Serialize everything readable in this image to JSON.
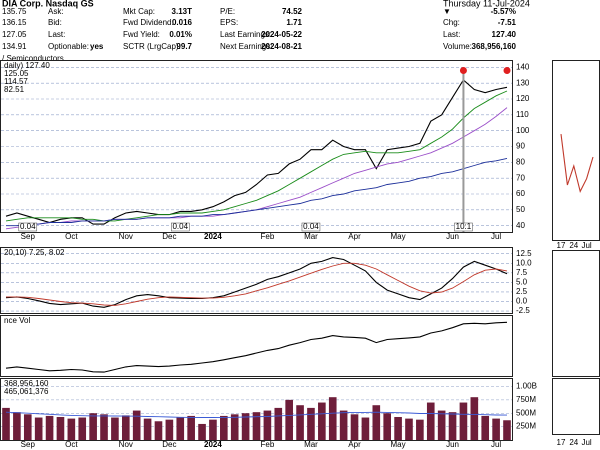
{
  "header": {
    "company": "DIA Corp. Nasdaq GS",
    "date": "Thursday 11-Jul-2024",
    "industry": "/ Semiconductors",
    "quote": [
      "135.75",
      "136.15",
      "127.05",
      "134.91"
    ],
    "fields": [
      {
        "label": "Ask:"
      },
      {
        "label": "Bid:"
      },
      {
        "label": "Last:"
      },
      {
        "label": "Optionable:",
        "value": "yes"
      },
      {
        "label": "Mkt Cap:",
        "value": "3.13T"
      },
      {
        "label": "Fwd Dividend:",
        "value": "0.016"
      },
      {
        "label": "Fwd Yield:",
        "value": "0.01%"
      },
      {
        "label": "SCTR (LrgCap):",
        "value": "99.7"
      },
      {
        "label": "P/E:",
        "value": "74.52"
      },
      {
        "label": "EPS:",
        "value": "1.71"
      },
      {
        "label": "Last Earnings:",
        "value": "2024-05-22"
      },
      {
        "label": "Next Earnings:",
        "value": "2024-08-21"
      },
      {
        "label": "▼",
        "value": "-5.57%",
        "color": "#d00000"
      },
      {
        "label": "Chg:",
        "value": "-7.51"
      },
      {
        "label": "Last:",
        "value": "127.40"
      },
      {
        "label": "Volume:",
        "value": "368,956,160"
      }
    ]
  },
  "chart_data": [
    {
      "type": "line",
      "grid": true,
      "categories": [
        null,
        null,
        "Sep",
        null,
        null,
        null,
        "Oct",
        null,
        null,
        null,
        null,
        "Nov",
        null,
        null,
        null,
        "Dec",
        null,
        null,
        null,
        "2024",
        null,
        null,
        null,
        null,
        "Feb",
        null,
        null,
        null,
        "Mar",
        null,
        null,
        null,
        "Apr",
        null,
        null,
        null,
        "May",
        null,
        null,
        null,
        null,
        "Jun",
        null,
        null,
        null,
        "Jul",
        null
      ],
      "series": [
        {
          "name": "daily) 127.40",
          "color": "#000000",
          "values": [
            46,
            48,
            46,
            44,
            42,
            44,
            45,
            45,
            41,
            41,
            45,
            48,
            49,
            48,
            47,
            47,
            49,
            49,
            50,
            52,
            55,
            59,
            61,
            66,
            72,
            73,
            79,
            82,
            88,
            88,
            94,
            90,
            88,
            88,
            76,
            88,
            89,
            90,
            92,
            106,
            110,
            121,
            132,
            126,
            124,
            126,
            127.4
          ]
        },
        {
          "name": "125.05",
          "color": "#1a8c1a",
          "values": [
            43,
            44,
            45,
            45,
            45,
            45,
            45,
            44,
            44,
            43,
            43,
            44,
            45,
            46,
            47,
            47,
            48,
            48,
            48,
            49,
            50,
            52,
            54,
            56,
            59,
            62,
            66,
            70,
            74,
            78,
            82,
            85,
            86,
            87,
            86,
            86,
            86,
            87,
            88,
            92,
            96,
            101,
            108,
            114,
            118,
            122,
            125.05
          ]
        },
        {
          "name": "114.57",
          "color": "#9b4fc9",
          "values": [
            38,
            39,
            40,
            41,
            42,
            42,
            43,
            43,
            43,
            43,
            44,
            44,
            44,
            45,
            45,
            45,
            45,
            46,
            46,
            46,
            47,
            48,
            49,
            50,
            52,
            54,
            56,
            58,
            61,
            64,
            67,
            70,
            73,
            75,
            77,
            79,
            80,
            82,
            84,
            86,
            89,
            92,
            96,
            100,
            104,
            109,
            114.57
          ]
        },
        {
          "name": "82.51",
          "color": "#1c2f9a",
          "values": [
            40,
            40,
            41,
            41,
            42,
            42,
            42,
            43,
            43,
            43,
            44,
            44,
            44,
            45,
            45,
            45,
            46,
            46,
            46,
            47,
            47,
            48,
            49,
            50,
            51,
            52,
            53,
            54,
            56,
            57,
            59,
            60,
            62,
            63,
            64,
            66,
            67,
            68,
            70,
            71,
            73,
            74,
            76,
            78,
            80,
            81,
            82.51
          ]
        }
      ],
      "ylim": [
        36,
        144
      ],
      "yticks": [
        140,
        130,
        120,
        110,
        100,
        90,
        80,
        70,
        60,
        50,
        40
      ],
      "annotations": [
        "0.04",
        "0.04",
        "0.04",
        "10:1"
      ]
    },
    {
      "type": "line",
      "grid": true,
      "title": "20,10) 7.25, 8.02",
      "series": [
        {
          "color": "#000000",
          "values": [
            1.0,
            1.2,
            0.8,
            0.2,
            -0.5,
            -0.8,
            -0.6,
            -0.4,
            -1.2,
            -1.5,
            -0.8,
            0.5,
            1.5,
            1.8,
            1.5,
            1.0,
            0.9,
            0.8,
            0.8,
            1.0,
            1.5,
            2.5,
            3.5,
            4.5,
            5.8,
            6.5,
            7.5,
            8.5,
            10.0,
            10.5,
            11.5,
            11.0,
            9.5,
            8.0,
            5.0,
            3.0,
            2.0,
            1.0,
            0.5,
            2.0,
            3.5,
            6.0,
            9.0,
            10.5,
            9.5,
            8.5,
            7.25
          ]
        },
        {
          "color": "#c0392b",
          "values": [
            1.2,
            1.2,
            1.1,
            0.8,
            0.4,
            0.0,
            -0.3,
            -0.4,
            -0.6,
            -0.9,
            -1.0,
            -0.6,
            0.0,
            0.6,
            1.0,
            1.2,
            1.1,
            1.0,
            0.9,
            0.9,
            1.1,
            1.5,
            2.0,
            2.8,
            3.6,
            4.5,
            5.4,
            6.4,
            7.4,
            8.4,
            9.3,
            10.0,
            10.0,
            9.5,
            8.5,
            7.0,
            5.5,
            4.0,
            2.8,
            2.2,
            2.5,
            3.5,
            5.2,
            7.0,
            8.2,
            8.5,
            8.02
          ]
        }
      ],
      "ylim": [
        -3,
        14
      ],
      "yticks": [
        12.5,
        {
          "value": 10,
          "label": "10.0"
        },
        7.5,
        {
          "value": 5,
          "label": "5.0"
        },
        2.5,
        {
          "value": 0,
          "label": "0.0"
        },
        -2.5
      ]
    },
    {
      "type": "line",
      "title": "nce Vol",
      "series": [
        {
          "color": "#000000",
          "values": [
            10,
            10.5,
            10,
            9.5,
            9,
            9.2,
            9.5,
            9.3,
            8.6,
            8.5,
            9.5,
            10.5,
            11,
            10.8,
            10.6,
            10.8,
            11.2,
            11.5,
            12,
            12.5,
            13.2,
            14,
            14.8,
            15.8,
            16.8,
            17.5,
            18.8,
            19.8,
            21,
            21.5,
            22.5,
            22,
            21.8,
            21.5,
            19.8,
            21,
            21.3,
            21.6,
            22,
            23.5,
            24.3,
            25.5,
            27,
            27.2,
            27,
            27.4,
            27.6
          ]
        }
      ],
      "ylim": [
        7,
        30
      ]
    },
    {
      "type": "bar",
      "grid": true,
      "categories": [
        null,
        null,
        "Sep",
        null,
        null,
        null,
        "Oct",
        null,
        null,
        null,
        null,
        "Nov",
        null,
        null,
        null,
        "Dec",
        null,
        null,
        null,
        "2024",
        null,
        null,
        null,
        null,
        "Feb",
        null,
        null,
        null,
        "Mar",
        null,
        null,
        null,
        "Apr",
        null,
        null,
        null,
        "May",
        null,
        null,
        null,
        null,
        "Jun",
        null,
        null,
        null,
        "Jul",
        null
      ],
      "series": [
        {
          "name": "368,956,160",
          "color": "#6e1e3a",
          "values": [
            600000000,
            520000000,
            480000000,
            420000000,
            450000000,
            430000000,
            400000000,
            420000000,
            500000000,
            480000000,
            420000000,
            460000000,
            550000000,
            400000000,
            350000000,
            380000000,
            420000000,
            450000000,
            300000000,
            380000000,
            450000000,
            480000000,
            500000000,
            520000000,
            550000000,
            600000000,
            750000000,
            650000000,
            600000000,
            700000000,
            800000000,
            550000000,
            480000000,
            420000000,
            650000000,
            500000000,
            430000000,
            400000000,
            380000000,
            700000000,
            550000000,
            520000000,
            700000000,
            800000000,
            450000000,
            400000000,
            368956160
          ]
        },
        {
          "name": "465,061,376",
          "color": "#3b5bd6",
          "type": "line",
          "values": [
            520000000,
            510000000,
            500000000,
            490000000,
            480000000,
            470000000,
            460000000,
            455000000,
            450000000,
            450000000,
            448000000,
            446000000,
            445000000,
            440000000,
            435000000,
            430000000,
            425000000,
            422000000,
            420000000,
            420000000,
            422000000,
            425000000,
            430000000,
            435000000,
            440000000,
            450000000,
            460000000,
            470000000,
            480000000,
            490000000,
            500000000,
            510000000,
            515000000,
            515000000,
            520000000,
            515000000,
            510000000,
            505000000,
            495000000,
            495000000,
            490000000,
            485000000,
            480000000,
            478000000,
            472000000,
            468000000,
            465061376
          ]
        }
      ],
      "ylim": [
        0,
        1140000000
      ],
      "yticks": [
        {
          "value": 1000000000,
          "label": "1.00B"
        },
        {
          "value": 750000000,
          "label": "750M"
        },
        {
          "value": 500000000,
          "label": "500M"
        },
        {
          "value": 250000000,
          "label": "250M"
        }
      ]
    },
    {
      "type": "line",
      "categories": [
        "17",
        null,
        "24",
        null,
        "Jul",
        null
      ],
      "series": [
        {
          "color": "#c0392b",
          "values": [
            131,
            123,
            126,
            122,
            124,
            127.4
          ]
        }
      ],
      "ylim": [
        115,
        142
      ]
    }
  ]
}
